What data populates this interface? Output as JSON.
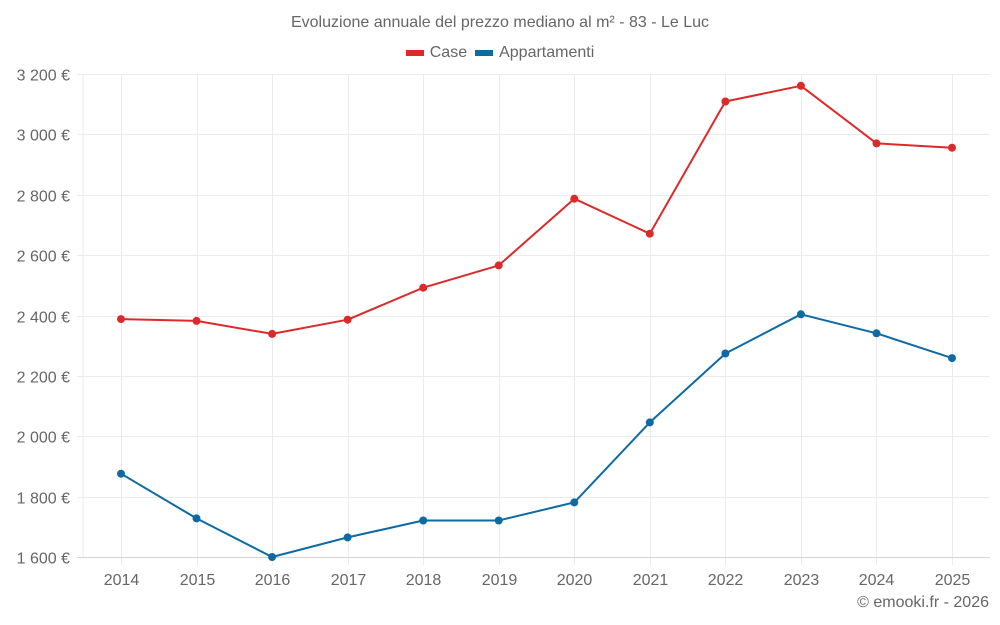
{
  "chart_data": {
    "type": "line",
    "title": "Evoluzione annuale del prezzo mediano al m² - 83 - Le Luc",
    "xlabel": "",
    "ylabel": "",
    "x": [
      "2014",
      "2015",
      "2016",
      "2017",
      "2018",
      "2019",
      "2020",
      "2021",
      "2022",
      "2023",
      "2024",
      "2025"
    ],
    "series": [
      {
        "name": "Case",
        "color": "#dc2a2a",
        "values": [
          2388,
          2382,
          2339,
          2386,
          2492,
          2566,
          2787,
          2671,
          3109,
          3161,
          2970,
          2956
        ]
      },
      {
        "name": "Appartamenti",
        "color": "#0e6aa2",
        "values": [
          1876,
          1728,
          1600,
          1665,
          1721,
          1721,
          1781,
          2046,
          2274,
          2404,
          2341,
          2259
        ]
      }
    ],
    "ylim": [
      1600,
      3200
    ],
    "yticks": [
      1600,
      1800,
      2000,
      2200,
      2400,
      2600,
      2800,
      3000,
      3200
    ],
    "ytick_labels": [
      "1 600 €",
      "1 800 €",
      "2 000 €",
      "2 200 €",
      "2 400 €",
      "2 600 €",
      "2 800 €",
      "3 000 €",
      "3 200 €"
    ],
    "grid": true,
    "legend_position": "top-center"
  },
  "legend": [
    {
      "label": "Case",
      "color": "#dc2a2a"
    },
    {
      "label": "Appartamenti",
      "color": "#0e6aa2"
    }
  ],
  "footer": {
    "copyright": "© emooki.fr - 2026"
  }
}
